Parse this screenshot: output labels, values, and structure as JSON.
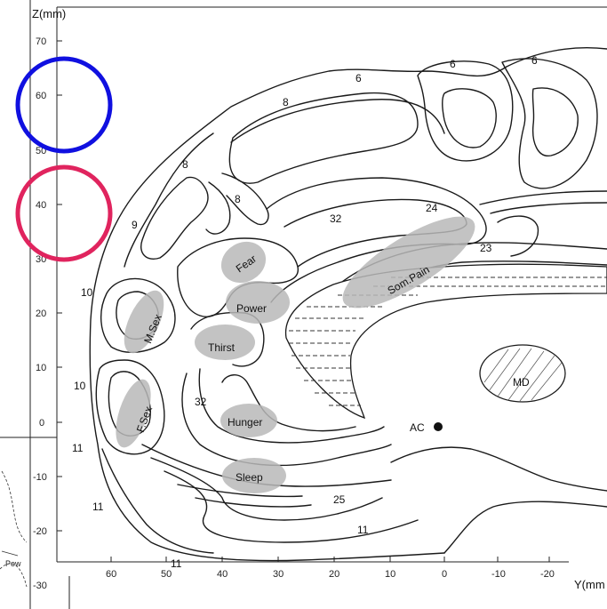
{
  "axes": {
    "z_title": "Z(mm)",
    "y_title": "Y(mm",
    "z_ticks": [
      "70",
      "60",
      "50",
      "40",
      "30",
      "20",
      "10",
      "0",
      "-10",
      "-20",
      "-30"
    ],
    "y_ticks": [
      "60",
      "50",
      "40",
      "30",
      "20",
      "10",
      "0",
      "-10",
      "-20"
    ]
  },
  "area_numbers": {
    "a6a": "6",
    "a6b": "6",
    "a6c": "6",
    "a8a": "8",
    "a8b": "8",
    "a8c": "8",
    "a9": "9",
    "a10a": "10",
    "a10b": "10",
    "a11a": "11",
    "a11b": "11",
    "a11c": "11",
    "a11d": "11",
    "a24": "24",
    "a23": "23",
    "a32a": "32",
    "a32b": "32",
    "a25": "25"
  },
  "regions": {
    "fear": "Fear",
    "power": "Power",
    "thirst": "Thirst",
    "m_sex": "M.Sex",
    "f_sex": "F.Sex",
    "hunger": "Hunger",
    "sleep": "Sleep",
    "som_pain": "Som.Pain",
    "md": "MD",
    "ac": "AC"
  },
  "inset": {
    "label": "Pow"
  },
  "colors": {
    "circle_blue": "#1010e0",
    "circle_red": "#e0245e",
    "blob_gray": "#b9b9b9"
  },
  "annotations": [
    {
      "shape": "circle",
      "color": "blue",
      "around_z_tick": "60"
    },
    {
      "shape": "circle",
      "color": "red",
      "around_z_tick": "40"
    }
  ]
}
